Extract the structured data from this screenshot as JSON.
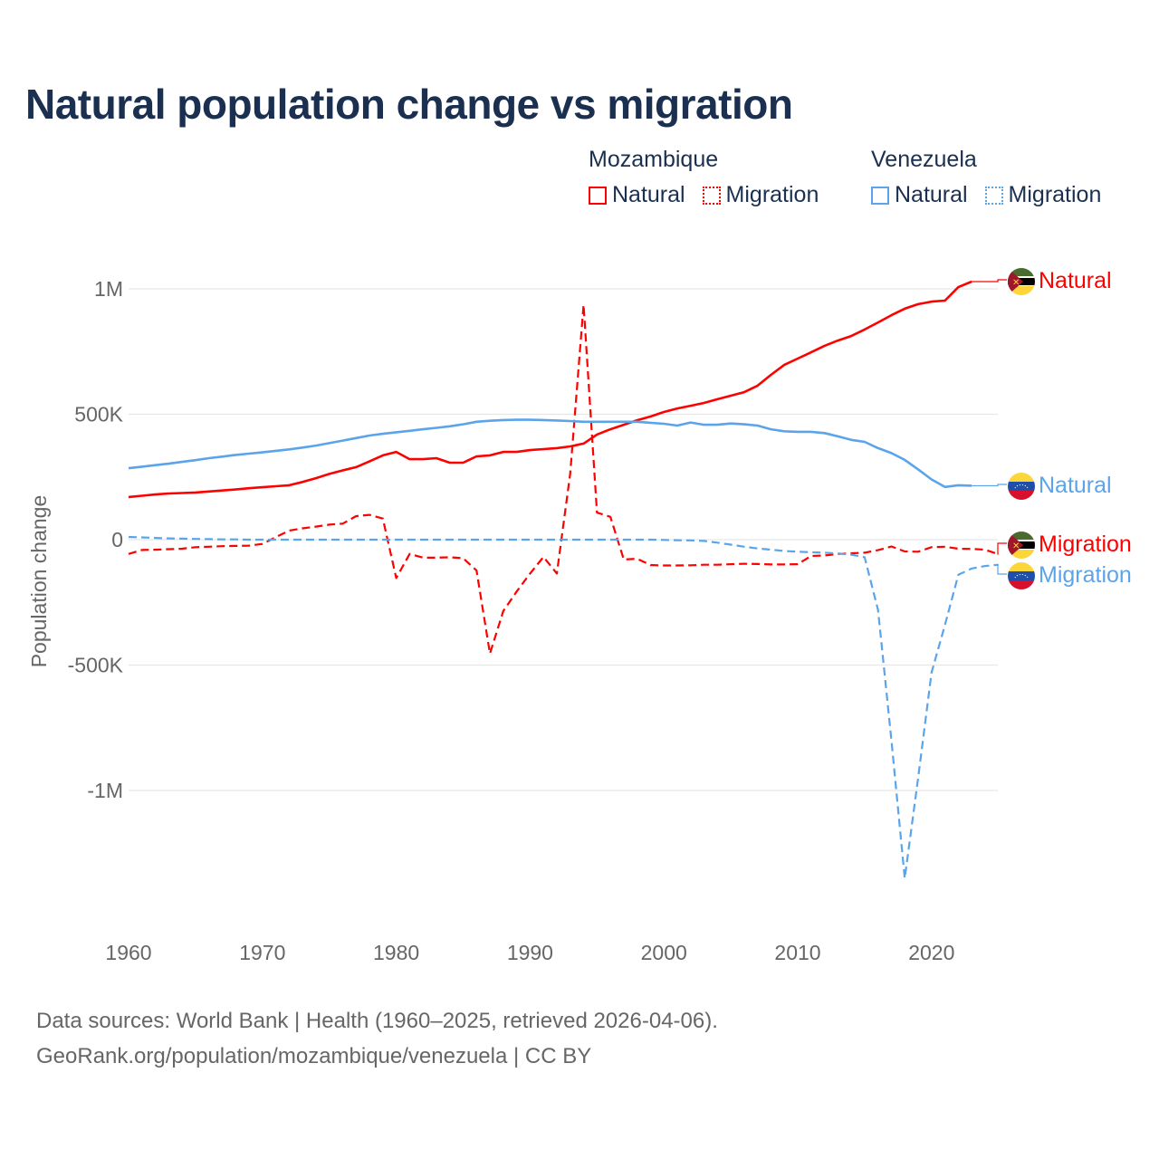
{
  "title": "Natural population change vs migration",
  "legend": {
    "groups": [
      {
        "name": "Mozambique",
        "items": [
          {
            "label": "Natural",
            "style": "solid"
          },
          {
            "label": "Migration",
            "style": "dotted"
          }
        ],
        "color": "#ff0000"
      },
      {
        "name": "Venezuela",
        "items": [
          {
            "label": "Natural",
            "style": "solid"
          },
          {
            "label": "Migration",
            "style": "dotted"
          }
        ],
        "color": "#5ba4ea"
      }
    ]
  },
  "footer": {
    "line1": "Data sources: World Bank | Health (1960–2025, retrieved 2026-04-06).",
    "line2": "GeoRank.org/population/mozambique/venezuela | CC BY"
  },
  "chart_data": {
    "type": "line",
    "title": "Natural population change vs migration",
    "xlabel": "",
    "ylabel": "Population change",
    "xlim": [
      1960,
      2025
    ],
    "ylim": [
      -1400000,
      1100000
    ],
    "xticks": [
      {
        "v": 1960,
        "label": "1960"
      },
      {
        "v": 1970,
        "label": "1970"
      },
      {
        "v": 1980,
        "label": "1980"
      },
      {
        "v": 1990,
        "label": "1990"
      },
      {
        "v": 2000,
        "label": "2000"
      },
      {
        "v": 2010,
        "label": "2010"
      },
      {
        "v": 2020,
        "label": "2020"
      }
    ],
    "yticks": [
      {
        "v": 1000000,
        "label": "1M"
      },
      {
        "v": 500000,
        "label": "500K"
      },
      {
        "v": 0,
        "label": "0"
      },
      {
        "v": -500000,
        "label": "-500K"
      },
      {
        "v": -1000000,
        "label": "-1M"
      }
    ],
    "grid": true,
    "series": [
      {
        "name": "Mozambique Natural",
        "end_label": "Natural",
        "country": "mozambique",
        "color": "#ff0000",
        "dash": "solid",
        "start_year": 1960,
        "values": [
          170000,
          175000,
          180000,
          184000,
          186000,
          188000,
          192000,
          196000,
          200000,
          205000,
          209000,
          213000,
          217000,
          230000,
          245000,
          262000,
          276000,
          289000,
          312000,
          336000,
          350000,
          321000,
          321000,
          325000,
          307000,
          307000,
          332000,
          336000,
          350000,
          350000,
          357000,
          361000,
          365000,
          372000,
          383000,
          419000,
          440000,
          458000,
          476000,
          491000,
          509000,
          523000,
          534000,
          545000,
          560000,
          574000,
          588000,
          614000,
          657000,
          697000,
          722000,
          747000,
          773000,
          794000,
          812000,
          838000,
          866000,
          895000,
          921000,
          939000,
          949000,
          953000,
          1007000,
          1029000
        ]
      },
      {
        "name": "Mozambique Migration",
        "end_label": "Migration",
        "country": "mozambique",
        "color": "#ff0000",
        "dash": "dashed",
        "start_year": 1960,
        "values": [
          -57000,
          -41000,
          -40000,
          -38000,
          -36000,
          -30000,
          -28000,
          -26000,
          -25000,
          -24000,
          -17000,
          10000,
          36000,
          45000,
          52000,
          60000,
          64000,
          94000,
          99000,
          84000,
          -153000,
          -57000,
          -72000,
          -72000,
          -70000,
          -74000,
          -123000,
          -454000,
          -285000,
          -207000,
          -135000,
          -69000,
          -135000,
          262000,
          936000,
          108000,
          91000,
          -79000,
          -76000,
          -101000,
          -103000,
          -103000,
          -102000,
          -100000,
          -100000,
          -98000,
          -96000,
          -97000,
          -99000,
          -99000,
          -98000,
          -65000,
          -63000,
          -57000,
          -54000,
          -52000,
          -42000,
          -27000,
          -47000,
          -48000,
          -30000,
          -28000,
          -36000,
          -37000,
          -40000,
          -58000
        ]
      },
      {
        "name": "Venezuela Natural",
        "end_label": "Natural",
        "country": "venezuela",
        "color": "#5ba4ea",
        "dash": "solid",
        "start_year": 1960,
        "values": [
          285000,
          291000,
          297000,
          303000,
          310000,
          317000,
          325000,
          331000,
          338000,
          343000,
          348000,
          354000,
          360000,
          367000,
          375000,
          385000,
          395000,
          405000,
          415000,
          422000,
          428000,
          434000,
          440000,
          446000,
          452000,
          460000,
          470000,
          474000,
          477000,
          478000,
          478000,
          477000,
          475000,
          473000,
          470000,
          470000,
          470000,
          470000,
          470000,
          466000,
          462000,
          455000,
          467000,
          458000,
          458000,
          463000,
          460000,
          455000,
          440000,
          432000,
          430000,
          430000,
          425000,
          412000,
          398000,
          390000,
          365000,
          345000,
          318000,
          280000,
          240000,
          210000,
          217000,
          215000
        ]
      },
      {
        "name": "Venezuela Migration",
        "end_label": "Migration",
        "country": "venezuela",
        "color": "#5ba4ea",
        "dash": "dashed",
        "start_year": 1960,
        "values": [
          11000,
          9000,
          7000,
          5000,
          4000,
          3000,
          2000,
          1000,
          1000,
          0,
          0,
          0,
          0,
          0,
          0,
          0,
          0,
          0,
          0,
          0,
          0,
          0,
          0,
          0,
          0,
          0,
          0,
          0,
          0,
          0,
          0,
          0,
          0,
          0,
          0,
          0,
          0,
          0,
          0,
          0,
          -1000,
          -2000,
          -3000,
          -5000,
          -12000,
          -20000,
          -28000,
          -35000,
          -40000,
          -45000,
          -48000,
          -50000,
          -52000,
          -55000,
          -60000,
          -70000,
          -280000,
          -800000,
          -1350000,
          -950000,
          -530000,
          -340000,
          -140000,
          -115000,
          -105000,
          -100000
        ]
      }
    ]
  }
}
